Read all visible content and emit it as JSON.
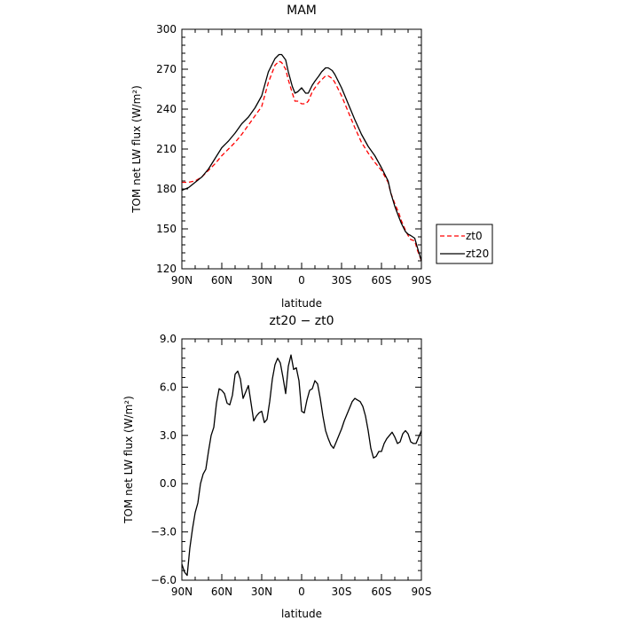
{
  "chart_data": [
    {
      "type": "line",
      "title": "MAM",
      "xlabel": "latitude",
      "ylabel": "TOM net LW flux (W/m²)",
      "xlim": [
        90,
        -90
      ],
      "ylim": [
        120,
        300
      ],
      "xticks": [
        90,
        60,
        30,
        0,
        -30,
        -60,
        -90
      ],
      "xticklabels": [
        "90N",
        "60N",
        "30N",
        "0",
        "30S",
        "60S",
        "90S"
      ],
      "yticks": [
        120,
        150,
        180,
        210,
        240,
        270,
        300
      ],
      "yticklabels": [
        "120",
        "150",
        "180",
        "210",
        "240",
        "270",
        "300"
      ],
      "legend": {
        "placement": "right-outside"
      },
      "series": [
        {
          "name": "zt0",
          "color": "#ff0000",
          "dash": "dashed",
          "x": [
            90,
            85,
            80,
            75,
            70,
            65,
            60,
            55,
            50,
            45,
            40,
            35,
            30,
            25,
            20,
            17,
            15,
            12,
            10,
            7,
            5,
            3,
            0,
            -3,
            -5,
            -8,
            -10,
            -13,
            -15,
            -18,
            -20,
            -23,
            -25,
            -30,
            -35,
            -40,
            -45,
            -50,
            -55,
            -60,
            -65,
            -67,
            -70,
            -73,
            -75,
            -78,
            -80,
            -82,
            -85,
            -87,
            -90
          ],
          "y": [
            185,
            185,
            186,
            189,
            194,
            199,
            205,
            210,
            215,
            221,
            228,
            235,
            242,
            260,
            273,
            276,
            275,
            270,
            262,
            252,
            246,
            246,
            244,
            244,
            246,
            253,
            256,
            260,
            262,
            265,
            265,
            263,
            260,
            250,
            238,
            226,
            215,
            207,
            200,
            194,
            185,
            177,
            169,
            162,
            156,
            149,
            145,
            142,
            141,
            134,
            126
          ]
        },
        {
          "name": "zt20",
          "color": "#000000",
          "dash": "solid",
          "x": [
            90,
            85,
            80,
            75,
            70,
            65,
            60,
            55,
            50,
            45,
            40,
            35,
            30,
            25,
            20,
            17,
            15,
            12,
            10,
            7,
            5,
            3,
            0,
            -3,
            -5,
            -8,
            -10,
            -13,
            -15,
            -18,
            -20,
            -23,
            -25,
            -30,
            -35,
            -40,
            -45,
            -50,
            -55,
            -60,
            -65,
            -67,
            -70,
            -73,
            -75,
            -78,
            -80,
            -82,
            -85,
            -87,
            -90
          ],
          "y": [
            179,
            181,
            185,
            189,
            195,
            203,
            211,
            216,
            222,
            229,
            234,
            241,
            250,
            268,
            278,
            281,
            281,
            277,
            268,
            257,
            252,
            253,
            256,
            252,
            252,
            258,
            261,
            265,
            268,
            271,
            271,
            269,
            266,
            256,
            244,
            232,
            221,
            212,
            205,
            196,
            186,
            177,
            167,
            159,
            154,
            148,
            146,
            145,
            143,
            136,
            126
          ]
        }
      ]
    },
    {
      "type": "line",
      "title": "zt20 − zt0",
      "xlabel": "latitude",
      "ylabel": "TOM net LW flux (W/m²)",
      "xlim": [
        90,
        -90
      ],
      "ylim": [
        -6,
        9
      ],
      "xticks": [
        90,
        60,
        30,
        0,
        -30,
        -60,
        -90
      ],
      "xticklabels": [
        "90N",
        "60N",
        "30N",
        "0",
        "30S",
        "60S",
        "90S"
      ],
      "yticks": [
        -6,
        -3,
        0,
        3,
        6,
        9
      ],
      "yticklabels": [
        "−6.0",
        "−3.0",
        "0.0",
        "3.0",
        "6.0",
        "9.0"
      ],
      "series": [
        {
          "color": "#000000",
          "dash": "solid",
          "x": [
            90,
            88,
            86,
            84,
            82,
            80,
            78,
            76,
            74,
            72,
            70,
            68,
            66,
            64,
            62,
            60,
            58,
            56,
            54,
            52,
            50,
            48,
            46,
            44,
            42,
            40,
            38,
            36,
            34,
            32,
            30,
            28,
            26,
            24,
            22,
            20,
            18,
            16,
            14,
            12,
            10,
            8,
            6,
            4,
            2,
            0,
            -2,
            -4,
            -6,
            -8,
            -10,
            -12,
            -14,
            -16,
            -18,
            -20,
            -22,
            -24,
            -26,
            -28,
            -30,
            -32,
            -34,
            -36,
            -38,
            -40,
            -42,
            -44,
            -46,
            -48,
            -50,
            -52,
            -54,
            -56,
            -58,
            -60,
            -62,
            -64,
            -66,
            -68,
            -70,
            -72,
            -74,
            -76,
            -78,
            -80,
            -82,
            -84,
            -86,
            -88,
            -90
          ],
          "y": [
            -5.0,
            -5.5,
            -5.7,
            -4.0,
            -2.8,
            -1.8,
            -1.2,
            0.0,
            0.6,
            0.9,
            2.0,
            3.0,
            3.5,
            5.0,
            5.9,
            5.8,
            5.6,
            5.0,
            4.9,
            5.5,
            6.8,
            7.0,
            6.5,
            5.3,
            5.7,
            6.1,
            5.0,
            3.9,
            4.2,
            4.4,
            4.5,
            3.8,
            4.0,
            5.1,
            6.5,
            7.4,
            7.8,
            7.5,
            6.6,
            5.6,
            7.3,
            8.0,
            7.1,
            7.2,
            6.4,
            4.5,
            4.4,
            5.2,
            5.8,
            5.9,
            6.4,
            6.2,
            5.3,
            4.2,
            3.3,
            2.8,
            2.4,
            2.2,
            2.6,
            3.0,
            3.4,
            3.9,
            4.3,
            4.7,
            5.1,
            5.3,
            5.2,
            5.1,
            4.8,
            4.2,
            3.3,
            2.2,
            1.6,
            1.7,
            2.0,
            2.0,
            2.5,
            2.8,
            3.0,
            3.2,
            2.9,
            2.5,
            2.6,
            3.1,
            3.3,
            3.1,
            2.6,
            2.5,
            2.5,
            2.9,
            3.3
          ]
        }
      ]
    }
  ]
}
